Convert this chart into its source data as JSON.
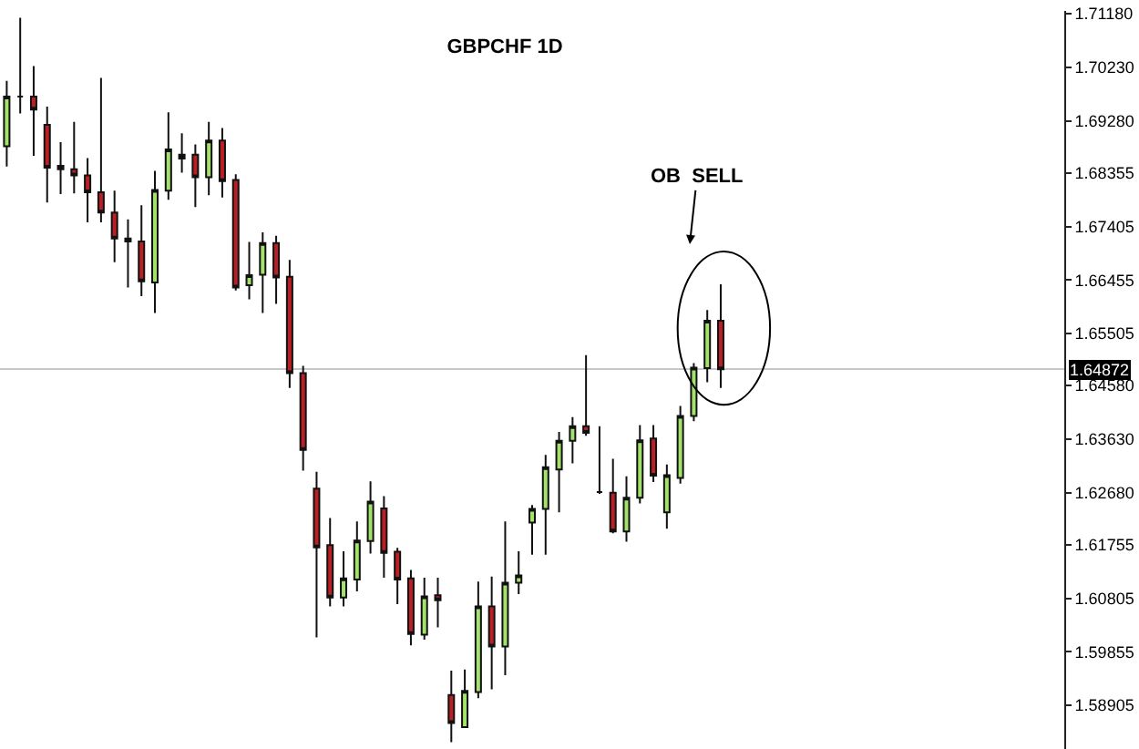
{
  "chart_data": {
    "type": "candlestick",
    "title": "GBPCHF 1D",
    "annotations": [
      "OB  SELL"
    ],
    "categories": [
      null,
      null,
      null,
      null,
      null,
      null,
      null,
      null,
      null,
      null,
      null,
      null,
      null,
      null,
      null,
      null,
      null,
      null,
      null,
      null,
      null,
      null,
      null,
      null,
      null,
      null,
      null,
      null,
      null,
      null,
      null,
      null,
      null,
      null,
      null,
      null,
      null,
      null,
      null,
      null,
      null,
      null,
      null,
      null,
      null,
      null,
      null,
      null,
      null,
      null,
      null,
      null,
      null,
      null,
      null,
      null,
      null,
      null,
      null,
      null,
      null,
      null,
      null,
      null,
      null,
      null,
      null,
      null,
      null,
      null,
      null,
      null,
      null,
      null,
      null,
      null,
      null,
      null,
      null
    ],
    "ohlc": [
      [
        1.6883,
        1.6999,
        1.6847,
        1.6971
      ],
      [
        1.6971,
        1.7111,
        1.6941,
        1.6971
      ],
      [
        1.6971,
        1.7025,
        1.6866,
        1.6948
      ],
      [
        1.6921,
        1.6953,
        1.6783,
        1.6845
      ],
      [
        1.6848,
        1.689,
        1.6798,
        1.6842
      ],
      [
        1.6842,
        1.6926,
        1.6799,
        1.6831
      ],
      [
        1.6831,
        1.6862,
        1.6748,
        1.6801
      ],
      [
        1.6801,
        1.7004,
        1.6748,
        1.6765
      ],
      [
        1.6765,
        1.6804,
        1.6677,
        1.6719
      ],
      [
        1.6719,
        1.6753,
        1.6632,
        1.6714
      ],
      [
        1.6714,
        1.6778,
        1.6617,
        1.6643
      ],
      [
        1.6641,
        1.6839,
        1.6587,
        1.6805
      ],
      [
        1.6804,
        1.6943,
        1.6788,
        1.6877
      ],
      [
        1.6861,
        1.6906,
        1.6836,
        1.6868
      ],
      [
        1.6868,
        1.6886,
        1.6775,
        1.6828
      ],
      [
        1.6828,
        1.6926,
        1.6796,
        1.6893
      ],
      [
        1.6893,
        1.6915,
        1.6792,
        1.6821
      ],
      [
        1.6823,
        1.6833,
        1.6627,
        1.6632
      ],
      [
        1.6636,
        1.6713,
        1.6611,
        1.6654
      ],
      [
        1.6655,
        1.673,
        1.6587,
        1.6711
      ],
      [
        1.6711,
        1.6724,
        1.6603,
        1.665
      ],
      [
        1.6651,
        1.6681,
        1.6454,
        1.648
      ],
      [
        1.648,
        1.6493,
        1.6307,
        1.6344
      ],
      [
        1.6275,
        1.6305,
        1.6011,
        1.6171
      ],
      [
        1.6175,
        1.6223,
        1.6066,
        1.6082
      ],
      [
        1.6082,
        1.6164,
        1.6066,
        1.6116
      ],
      [
        1.6114,
        1.6217,
        1.6093,
        1.6183
      ],
      [
        1.6182,
        1.6288,
        1.616,
        1.6252
      ],
      [
        1.624,
        1.6262,
        1.6117,
        1.6161
      ],
      [
        1.6163,
        1.617,
        1.607,
        1.6114
      ],
      [
        1.6116,
        1.6131,
        1.5997,
        1.6017
      ],
      [
        1.6016,
        1.6117,
        1.6007,
        1.6084
      ],
      [
        1.6086,
        1.6117,
        1.6029,
        1.6077
      ],
      [
        1.5909,
        1.5952,
        1.5825,
        1.5859
      ],
      [
        1.5852,
        1.5954,
        1.585,
        1.5916
      ],
      [
        1.5914,
        1.611,
        1.5903,
        1.6066
      ],
      [
        1.6066,
        1.6119,
        1.5919,
        1.5995
      ],
      [
        1.5995,
        1.6217,
        1.5944,
        1.6108
      ],
      [
        1.6108,
        1.6164,
        1.6088,
        1.6121
      ],
      [
        1.6215,
        1.6246,
        1.6158,
        1.6239
      ],
      [
        1.6239,
        1.6335,
        1.6158,
        1.6313
      ],
      [
        1.6309,
        1.6376,
        1.6233,
        1.636
      ],
      [
        1.636,
        1.6402,
        1.632,
        1.6386
      ],
      [
        1.6386,
        1.6512,
        1.6369,
        1.6374
      ],
      [
        1.6269,
        1.6386,
        1.6266,
        1.6269
      ],
      [
        1.6268,
        1.6328,
        1.6196,
        1.6199
      ],
      [
        1.6199,
        1.6297,
        1.6181,
        1.6259
      ],
      [
        1.6259,
        1.6388,
        1.6249,
        1.6361
      ],
      [
        1.6364,
        1.6388,
        1.6287,
        1.6298
      ],
      [
        1.6233,
        1.6318,
        1.6204,
        1.6299
      ],
      [
        1.6294,
        1.6422,
        1.6284,
        1.6404
      ],
      [
        1.6404,
        1.6498,
        1.6395,
        1.649
      ],
      [
        1.6489,
        1.6592,
        1.6464,
        1.6573
      ],
      [
        1.6573,
        1.6638,
        1.6454,
        1.6487
      ],
      null,
      null,
      null,
      null,
      null,
      null,
      null,
      null,
      null,
      null,
      null,
      null,
      null,
      null,
      null,
      null,
      null,
      null,
      null,
      null,
      null,
      null,
      null,
      null,
      null
    ],
    "colors": [
      "#a3e36b",
      "#111111",
      "#b91f24",
      "#b91f24",
      "#111111",
      "#b91f24",
      "#b91f24",
      "#b91f24",
      "#b91f24",
      "#111111",
      "#b91f24",
      "#a3e36b",
      "#a3e36b",
      "#111111",
      "#b91f24",
      "#a3e36b",
      "#b91f24",
      "#b91f24",
      "#a3e36b",
      "#a3e36b",
      "#b91f24",
      "#b91f24",
      "#b91f24",
      "#b91f24",
      "#b91f24",
      "#a3e36b",
      "#a3e36b",
      "#a3e36b",
      "#b91f24",
      "#b91f24",
      "#b91f24",
      "#a3e36b",
      "#b91f24",
      "#b91f24",
      "#a3e36b",
      "#a3e36b",
      "#b91f24",
      "#a3e36b",
      "#a3e36b",
      "#a3e36b",
      "#a3e36b",
      "#a3e36b",
      "#a3e36b",
      "#b91f24",
      "#111111",
      "#b91f24",
      "#a3e36b",
      "#a3e36b",
      "#b91f24",
      "#a3e36b",
      "#a3e36b",
      "#a3e36b",
      "#a3e36b",
      "#b91f24",
      null,
      null,
      null,
      null,
      null,
      null,
      null,
      null,
      null,
      null,
      null,
      null,
      null,
      null,
      null,
      null,
      null,
      null,
      null,
      null,
      null,
      null,
      null,
      null,
      null
    ],
    "ylim": [
      1.5813,
      1.7123
    ],
    "yticks": [
      {
        "value": 1.7118,
        "label": "1.71180"
      },
      {
        "value": 1.7023,
        "label": "1.70230"
      },
      {
        "value": 1.6928,
        "label": "1.69280"
      },
      1.68355,
      1.67405,
      1.66455,
      1.65505,
      {
        "value": 1.6458,
        "label": "1.64580"
      },
      {
        "value": 1.6363,
        "label": "1.63630"
      },
      {
        "value": 1.6268,
        "label": "1.62680"
      },
      1.61755,
      1.60805,
      1.59855,
      1.58905
    ],
    "ref_lines": [
      {
        "axis": "y",
        "value": 1.64872,
        "label": "1.64872",
        "color": "#c8c8c8"
      }
    ],
    "tick_labels": "y"
  }
}
